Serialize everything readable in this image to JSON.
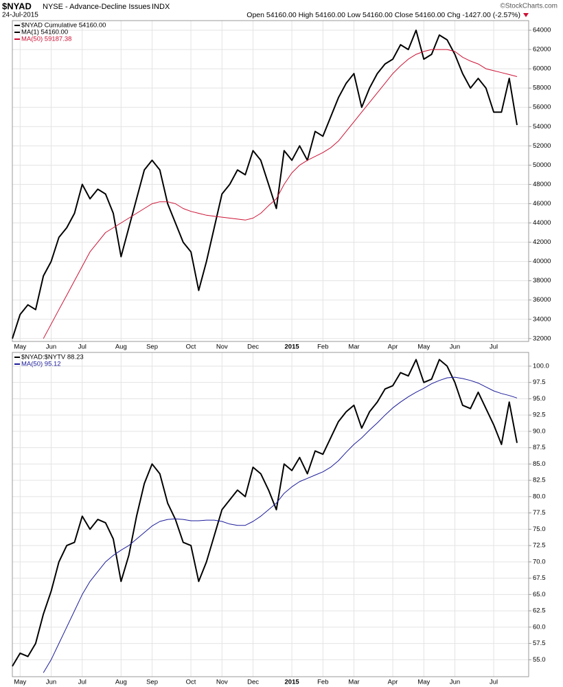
{
  "chart_data": [
    {
      "type": "line",
      "title": "$NYAD",
      "subtitle": "NYSE - Advance-Decline Issues",
      "exchange": "INDX",
      "date": "24-Jul-2015",
      "quote": "Open 54160.00  High 54160.00  Low 54160.00  Close 54160.00  Chg -1427.00 (-2.57%)",
      "credit": "©StockCharts.com",
      "categories": [
        null,
        "May",
        null,
        null,
        null,
        "Jun",
        null,
        null,
        null,
        "Jul",
        null,
        null,
        null,
        null,
        "Aug",
        null,
        null,
        null,
        "Sep",
        null,
        null,
        null,
        null,
        "Oct",
        null,
        null,
        null,
        "Nov",
        null,
        null,
        null,
        "Dec",
        null,
        null,
        null,
        null,
        "2015",
        null,
        null,
        null,
        "Feb",
        null,
        null,
        null,
        "Mar",
        null,
        null,
        null,
        null,
        "Apr",
        null,
        null,
        null,
        "May",
        null,
        null,
        null,
        "Jun",
        null,
        null,
        null,
        null,
        "Jul",
        null,
        null,
        null
      ],
      "series": [
        {
          "name": "$NYAD Cumulative 54160.00",
          "color": "#000000",
          "width": 2,
          "values": [
            32000,
            34500,
            35500,
            35000,
            38500,
            40000,
            42500,
            43500,
            45000,
            48000,
            46500,
            47500,
            47000,
            45000,
            40500,
            43500,
            46500,
            49500,
            50500,
            49500,
            46000,
            44000,
            42000,
            41000,
            37000,
            40000,
            43500,
            47000,
            48000,
            49500,
            49000,
            51500,
            50500,
            48000,
            45500,
            51500,
            50500,
            52000,
            50500,
            53500,
            53000,
            55000,
            57000,
            58500,
            59500,
            56000,
            58000,
            59500,
            60500,
            61000,
            62500,
            62000,
            64000,
            61000,
            61500,
            63500,
            63000,
            61500,
            59500,
            58000,
            59000,
            58000,
            55500,
            55500,
            59000,
            54160
          ]
        },
        {
          "name": "MA(1) 54160.00",
          "color": "#000000",
          "width": 1,
          "values": [
            32000,
            34500,
            35500,
            35000,
            38500,
            40000,
            42500,
            43500,
            45000,
            48000,
            46500,
            47500,
            47000,
            45000,
            40500,
            43500,
            46500,
            49500,
            50500,
            49500,
            46000,
            44000,
            42000,
            41000,
            37000,
            40000,
            43500,
            47000,
            48000,
            49500,
            49000,
            51500,
            50500,
            48000,
            45500,
            51500,
            50500,
            52000,
            50500,
            53500,
            53000,
            55000,
            57000,
            58500,
            59500,
            56000,
            58000,
            59500,
            60500,
            61000,
            62500,
            62000,
            64000,
            61000,
            61500,
            63500,
            63000,
            61500,
            59500,
            58000,
            59000,
            58000,
            55500,
            55500,
            59000,
            54160
          ]
        },
        {
          "name": "MA(50) 59187.38",
          "color": "#cc1133",
          "width": 1,
          "values": [
            null,
            null,
            null,
            null,
            32000,
            33500,
            35000,
            36500,
            38000,
            39500,
            41000,
            42000,
            43000,
            43500,
            44000,
            44500,
            45000,
            45500,
            46000,
            46200,
            46200,
            46000,
            45500,
            45200,
            45000,
            44800,
            44700,
            44600,
            44500,
            44400,
            44300,
            44500,
            45000,
            45800,
            46500,
            48000,
            49200,
            50000,
            50500,
            50900,
            51300,
            51800,
            52500,
            53500,
            54500,
            55500,
            56500,
            57500,
            58500,
            59500,
            60300,
            61000,
            61500,
            61800,
            62000,
            62000,
            62000,
            61800,
            61200,
            60800,
            60500,
            60000,
            59800,
            59600,
            59400,
            59187
          ]
        }
      ],
      "ylim": [
        31700,
        65000
      ],
      "yticks": [
        32000,
        34000,
        36000,
        38000,
        40000,
        42000,
        44000,
        46000,
        48000,
        50000,
        52000,
        54000,
        56000,
        58000,
        60000,
        62000,
        64000
      ],
      "grid": true
    },
    {
      "type": "line",
      "categories": [
        null,
        "May",
        null,
        null,
        null,
        "Jun",
        null,
        null,
        null,
        "Jul",
        null,
        null,
        null,
        null,
        "Aug",
        null,
        null,
        null,
        "Sep",
        null,
        null,
        null,
        null,
        "Oct",
        null,
        null,
        null,
        "Nov",
        null,
        null,
        null,
        "Dec",
        null,
        null,
        null,
        null,
        "2015",
        null,
        null,
        null,
        "Feb",
        null,
        null,
        null,
        "Mar",
        null,
        null,
        null,
        null,
        "Apr",
        null,
        null,
        null,
        "May",
        null,
        null,
        null,
        "Jun",
        null,
        null,
        null,
        null,
        "Jul",
        null,
        null,
        null
      ],
      "series": [
        {
          "name": "$NYAD:$NYTV 88.23",
          "color": "#000000",
          "width": 2,
          "values": [
            54,
            56,
            55.5,
            57.5,
            62,
            65.5,
            70,
            72.5,
            73,
            77,
            75,
            76.5,
            76,
            73.5,
            67,
            71,
            77,
            82,
            85,
            83.5,
            79,
            76.5,
            73,
            72.5,
            67,
            70,
            74,
            78,
            79.5,
            81,
            80,
            84.5,
            83.5,
            81,
            78,
            85,
            84,
            86,
            83.5,
            87,
            86.5,
            89,
            91.5,
            93,
            94,
            90.5,
            93,
            94.5,
            96.5,
            97,
            99,
            98.5,
            101,
            97.5,
            98,
            101,
            100,
            97.5,
            94,
            93.5,
            96,
            93.5,
            91,
            88,
            94.5,
            88.23
          ]
        },
        {
          "name": "MA(50) 95.12",
          "color": "#1a1a9a",
          "width": 1,
          "values": [
            null,
            null,
            null,
            null,
            53,
            55,
            57.5,
            60,
            62.5,
            65,
            67,
            68.5,
            70,
            71,
            71.8,
            72.5,
            73.5,
            74.5,
            75.5,
            76.2,
            76.5,
            76.6,
            76.5,
            76.3,
            76.3,
            76.4,
            76.4,
            76.2,
            75.8,
            75.6,
            75.6,
            76.2,
            77,
            78,
            79,
            80.5,
            81.5,
            82.3,
            82.8,
            83.3,
            83.8,
            84.5,
            85.5,
            86.8,
            88,
            89,
            90.2,
            91.3,
            92.5,
            93.6,
            94.5,
            95.3,
            96,
            96.6,
            97.3,
            97.8,
            98.2,
            98.3,
            98.1,
            97.8,
            97.4,
            96.8,
            96.2,
            95.8,
            95.5,
            95.12
          ]
        }
      ],
      "ylim": [
        52.4,
        102.1
      ],
      "yticks": [
        {
          "value": 55,
          "label": "55.0"
        },
        57.5,
        {
          "value": 60,
          "label": "60.0"
        },
        62.5,
        {
          "value": 65,
          "label": "65.0"
        },
        67.5,
        {
          "value": 70,
          "label": "70.0"
        },
        72.5,
        {
          "value": 75,
          "label": "75.0"
        },
        77.5,
        {
          "value": 80,
          "label": "80.0"
        },
        82.5,
        {
          "value": 85,
          "label": "85.0"
        },
        87.5,
        {
          "value": 90,
          "label": "90.0"
        },
        92.5,
        {
          "value": 95,
          "label": "95.0"
        },
        97.5,
        {
          "value": 100,
          "label": "100.0"
        }
      ],
      "grid": true
    }
  ]
}
